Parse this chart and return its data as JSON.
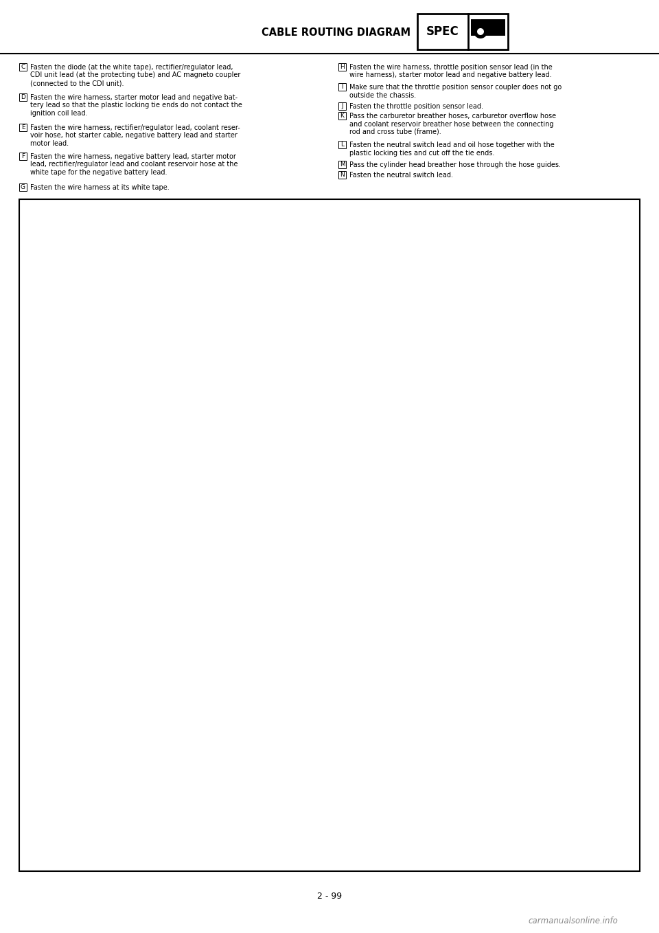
{
  "bg_color": "#ffffff",
  "header_title": "CABLE ROUTING DIAGRAM",
  "page_number": "2 - 99",
  "watermark": "carmanualsonline.info",
  "left_annotations": [
    {
      "label": "C",
      "text": "Fasten the diode (at the white tape), rectifier/regulator lead,\nCDI unit lead (at the protecting tube) and AC magneto coupler\n(connected to the CDI unit)."
    },
    {
      "label": "D",
      "text": "Fasten the wire harness, starter motor lead and negative bat-\ntery lead so that the plastic locking tie ends do not contact the\nignition coil lead."
    },
    {
      "label": "E",
      "text": "Fasten the wire harness, rectifier/regulator lead, coolant reser-\nvoir hose, hot starter cable, negative battery lead and starter\nmotor lead."
    },
    {
      "label": "F",
      "text": "Fasten the wire harness, negative battery lead, starter motor\nlead, rectifier/regulator lead and coolant reservoir hose at the\nwhite tape for the negative battery lead."
    },
    {
      "label": "G",
      "text": "Fasten the wire harness at its white tape."
    }
  ],
  "right_annotations": [
    {
      "label": "H",
      "text": "Fasten the wire harness, throttle position sensor lead (in the\nwire harness), starter motor lead and negative battery lead."
    },
    {
      "label": "I",
      "text": "Make sure that the throttle position sensor coupler does not go\noutside the chassis."
    },
    {
      "label": "J",
      "text": "Fasten the throttle position sensor lead."
    },
    {
      "label": "K",
      "text": "Pass the carburetor breather hoses, carburetor overflow hose\nand coolant reservoir breather hose between the connecting\nrod and cross tube (frame)."
    },
    {
      "label": "L",
      "text": "Fasten the neutral switch lead and oil hose together with the\nplastic locking ties and cut off the tie ends."
    },
    {
      "label": "M",
      "text": "Pass the cylinder head breather hose through the hose guides."
    },
    {
      "label": "N",
      "text": "Fasten the neutral switch lead."
    }
  ],
  "font_size_annotation": 7.0,
  "font_size_header": 9.5,
  "font_size_page": 9.0,
  "font_size_watermark": 8.5,
  "text_color": "#000000",
  "header_line_color": "#000000",
  "spec_icon": "🔑"
}
